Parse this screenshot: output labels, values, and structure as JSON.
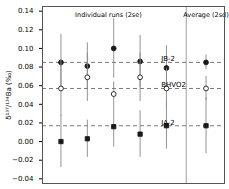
{
  "chart_data": {
    "type": "scatter",
    "ylabel": "δ¹³⁷/¹³⁴Ba (‰)",
    "xlim": [
      0.3,
      7.2
    ],
    "xticks": [],
    "ylim": [
      -0.045,
      0.145
    ],
    "yticks": [
      -0.04,
      -0.02,
      {
        "value": 0,
        "label": "0.00"
      },
      0.02,
      0.04,
      0.06,
      0.08,
      {
        "value": 0.1,
        "label": "0.10"
      },
      0.12,
      0.14
    ],
    "tick_labels": "y",
    "grid": false,
    "series": [
      {
        "marker": "circle",
        "color": "#1a1a1a",
        "x": [
          1,
          2,
          3,
          4,
          5,
          6.5
        ],
        "values": [
          0.085,
          0.081,
          0.1,
          0.086,
          0.079,
          0.085
        ],
        "errors": [
          0.03,
          0.025,
          0.032,
          0.028,
          0.024,
          0.008
        ]
      },
      {
        "marker": "circle_open",
        "color": "#1a1a1a",
        "x": [
          1,
          2,
          3,
          4,
          5,
          6.5
        ],
        "values": [
          0.057,
          0.069,
          0.051,
          0.069,
          0.057,
          0.057
        ],
        "errors": [
          0.03,
          0.026,
          0.013,
          0.026,
          0.022,
          0.013
        ]
      },
      {
        "marker": "square",
        "color": "#1a1a1a",
        "x": [
          1,
          2,
          3,
          4,
          5,
          6.5
        ],
        "values": [
          0.0,
          0.003,
          0.016,
          0.008,
          0.017,
          0.017
        ],
        "errors": [
          0.028,
          0.02,
          0.022,
          0.025,
          0.025,
          0.03
        ]
      }
    ],
    "hlines": [
      {
        "value": 0.085,
        "line_style": "dashed"
      },
      {
        "value": 0.057,
        "line_style": "dashed"
      },
      {
        "value": 0.017,
        "line_style": "dashed"
      }
    ],
    "vlines": [
      {
        "value": 5.75,
        "line_style": "solid"
      }
    ],
    "annotations": [
      {
        "text": "JB-2",
        "x": 4.8,
        "y": 0.085,
        "anchor": "bottom-left"
      },
      {
        "text": "BHVO2",
        "x": 4.8,
        "y": 0.057,
        "anchor": "bottom-left"
      },
      {
        "text": "JA-2",
        "x": 4.8,
        "y": 0.017,
        "anchor": "bottom-left"
      },
      {
        "text": "Individual runs (2se)",
        "x": 2.8,
        "y": 0.14,
        "anchor": "top"
      },
      {
        "text": "Average (2sd)",
        "x": 6.5,
        "y": 0.14,
        "anchor": "top"
      }
    ]
  }
}
